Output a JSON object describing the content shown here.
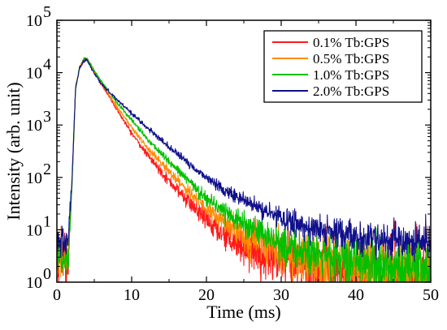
{
  "chart_data": {
    "type": "line",
    "xlabel": "Time (ms)",
    "ylabel": "Intensity (arb. unit)",
    "xlim": [
      0,
      50
    ],
    "ylim": [
      1,
      100000
    ],
    "yscale": "log",
    "grid": false,
    "legend_position": "top-right",
    "x_ticks": [
      0,
      10,
      20,
      30,
      40,
      50
    ],
    "x_tick_labels": [
      "0",
      "10",
      "20",
      "30",
      "40",
      "50"
    ],
    "y_ticks": [
      1,
      10,
      100,
      1000,
      10000,
      100000
    ],
    "y_tick_labels": [
      {
        "base": "10",
        "exp": "0"
      },
      {
        "base": "10",
        "exp": "1"
      },
      {
        "base": "10",
        "exp": "2"
      },
      {
        "base": "10",
        "exp": "3"
      },
      {
        "base": "10",
        "exp": "4"
      },
      {
        "base": "10",
        "exp": "5"
      }
    ],
    "x": [
      0,
      1.5,
      2.0,
      2.5,
      3.0,
      3.5,
      4.0,
      5,
      6,
      8,
      10,
      12,
      15,
      18,
      20,
      22,
      25,
      28,
      30,
      32,
      35,
      38,
      40,
      42,
      45,
      48,
      50
    ],
    "series": [
      {
        "name": "0.1% Tb:GPS",
        "color": "#ff1a1a",
        "values": [
          3,
          3,
          60,
          5000,
          12000,
          17000,
          18500,
          10500,
          6000,
          2000,
          700,
          280,
          85,
          30,
          15,
          9,
          5,
          3.2,
          2.5,
          2,
          1.6,
          1.3,
          1.2,
          1.1,
          1.05,
          1.02,
          1.0
        ]
      },
      {
        "name": "0.5% Tb:GPS",
        "color": "#ff8c00",
        "values": [
          3,
          3,
          60,
          5000,
          12000,
          17000,
          18500,
          10500,
          6200,
          2300,
          900,
          380,
          130,
          48,
          25,
          15,
          8,
          5,
          4,
          3.2,
          2.4,
          2,
          1.8,
          1.6,
          1.5,
          1.4,
          1.3
        ]
      },
      {
        "name": "1.0% Tb:GPS",
        "color": "#00c000",
        "values": [
          3,
          3,
          60,
          5000,
          12000,
          17000,
          19000,
          11000,
          6600,
          2700,
          1250,
          560,
          200,
          75,
          40,
          25,
          13,
          7.5,
          5.5,
          4.2,
          3.2,
          2.6,
          2.3,
          2.1,
          1.9,
          1.8,
          1.7
        ]
      },
      {
        "name": "2.0% Tb:GPS",
        "color": "#10108c",
        "values": [
          6,
          6,
          80,
          5000,
          11500,
          16000,
          17500,
          9500,
          6000,
          3100,
          1700,
          900,
          380,
          165,
          100,
          62,
          36,
          22,
          17,
          13,
          10,
          8,
          7.2,
          6.5,
          6,
          5.6,
          5.4
        ]
      }
    ]
  }
}
